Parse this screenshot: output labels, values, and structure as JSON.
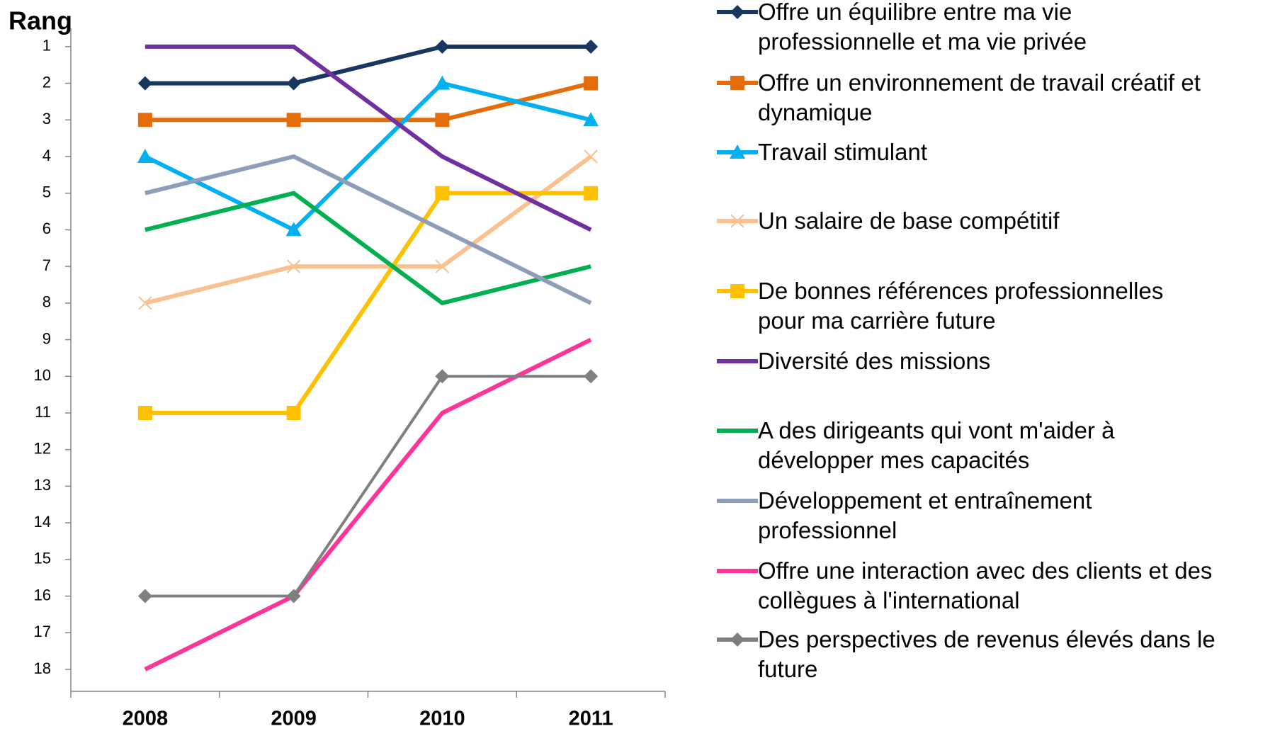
{
  "chart_data": {
    "type": "line",
    "y_title": "Rang",
    "categories": [
      "2008",
      "2009",
      "2010",
      "2011"
    ],
    "ylim": [
      18.6,
      0.5
    ],
    "yticks": [
      1,
      2,
      3,
      4,
      5,
      6,
      7,
      8,
      9,
      10,
      11,
      12,
      13,
      14,
      15,
      16,
      17,
      18
    ],
    "series": [
      {
        "name": "Offre un équilibre entre ma vie\nprofessionnelle et ma vie privée",
        "color": "#17375e",
        "marker": "diamond",
        "values": [
          2,
          2,
          1,
          1
        ]
      },
      {
        "name": "Offre un environnement de travail créatif et\ndynamique",
        "color": "#e46c0a",
        "marker": "square",
        "values": [
          3,
          3,
          3,
          2
        ]
      },
      {
        "name": "Travail stimulant",
        "color": "#00b0f0",
        "marker": "triangle",
        "values": [
          4,
          6,
          2,
          3
        ]
      },
      {
        "name": "Un salaire de base compétitif",
        "color": "#fac090",
        "marker": "x",
        "values": [
          8,
          7,
          7,
          4
        ]
      },
      {
        "name": "De bonnes références professionnelles\npour ma carrière future",
        "color": "#ffc000",
        "marker": "square",
        "values": [
          11,
          11,
          5,
          5
        ]
      },
      {
        "name": "Diversité des missions",
        "color": "#7030a0",
        "marker": "none",
        "values": [
          1,
          1,
          4,
          6
        ]
      },
      {
        "name": "A des dirigeants qui vont m'aider à\ndévelopper mes capacités",
        "color": "#00b050",
        "marker": "none",
        "values": [
          6,
          5,
          8,
          7
        ]
      },
      {
        "name": "Développement et entraînement\nprofessionnel",
        "color": "#8e9eb8",
        "marker": "none",
        "values": [
          5,
          4,
          6,
          8
        ]
      },
      {
        "name": "Offre une interaction avec des clients et des\ncollègues à l'international",
        "color": "#ff3399",
        "marker": "none",
        "values": [
          18,
          16,
          11,
          9
        ]
      },
      {
        "name": "Des perspectives de revenus élevés dans le\nfuture",
        "color": "#7f7f7f",
        "marker": "diamond",
        "values": [
          16,
          16,
          10,
          10
        ]
      }
    ]
  }
}
